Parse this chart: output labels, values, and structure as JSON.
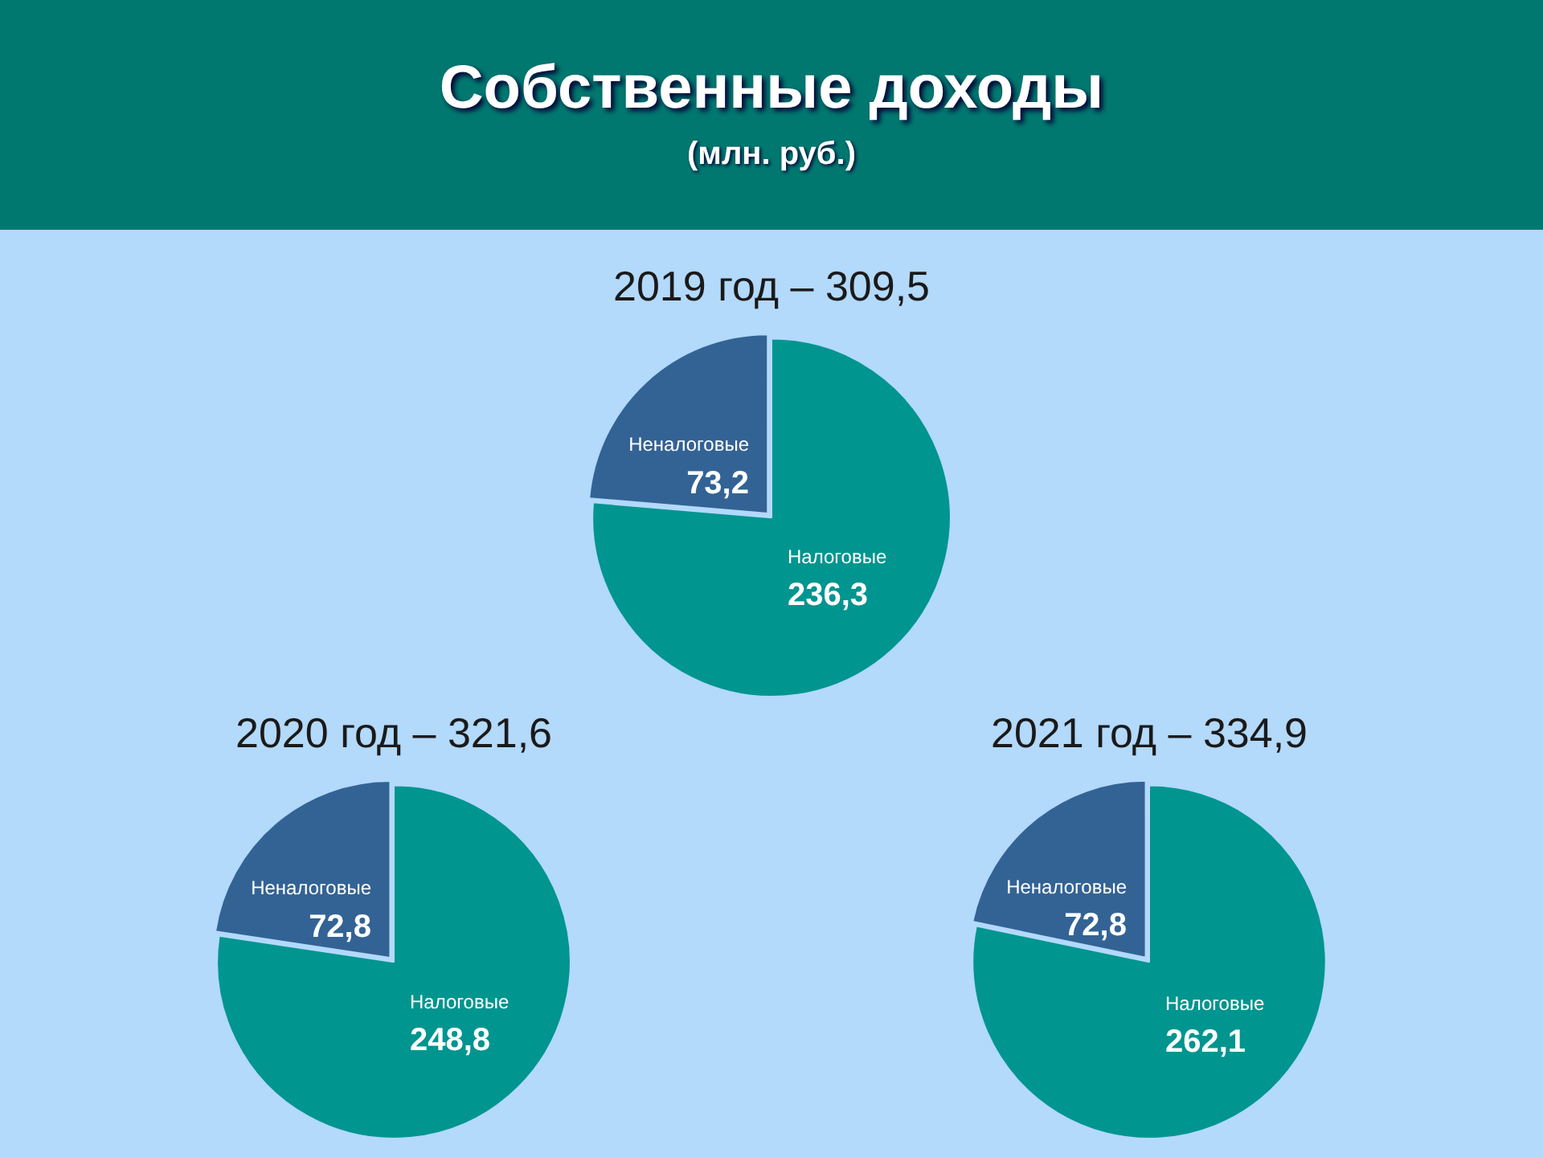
{
  "chart_data": [
    {
      "type": "pie",
      "title": "2019 год – 309,5",
      "annotations": [
        "Собственные доходы",
        "(млн. руб.)"
      ],
      "categories": [
        "Налоговые",
        "Неналоговые"
      ],
      "values": [
        236.3,
        73.2
      ],
      "value_labels": [
        "236,3",
        "73,2"
      ],
      "colors": [
        "#00958f",
        "#336395"
      ]
    },
    {
      "type": "pie",
      "title": "2020 год – 321,6",
      "categories": [
        "Налоговые",
        "Неналоговые"
      ],
      "values": [
        248.8,
        72.8
      ],
      "value_labels": [
        "248,8",
        "72,8"
      ],
      "colors": [
        "#00958f",
        "#336395"
      ]
    },
    {
      "type": "pie",
      "title": "2021 год – 334,9",
      "categories": [
        "Налоговые",
        "Неналоговые"
      ],
      "values": [
        262.1,
        72.8
      ],
      "value_labels": [
        "262,1",
        "72,8"
      ],
      "colors": [
        "#00958f",
        "#336395"
      ]
    }
  ]
}
